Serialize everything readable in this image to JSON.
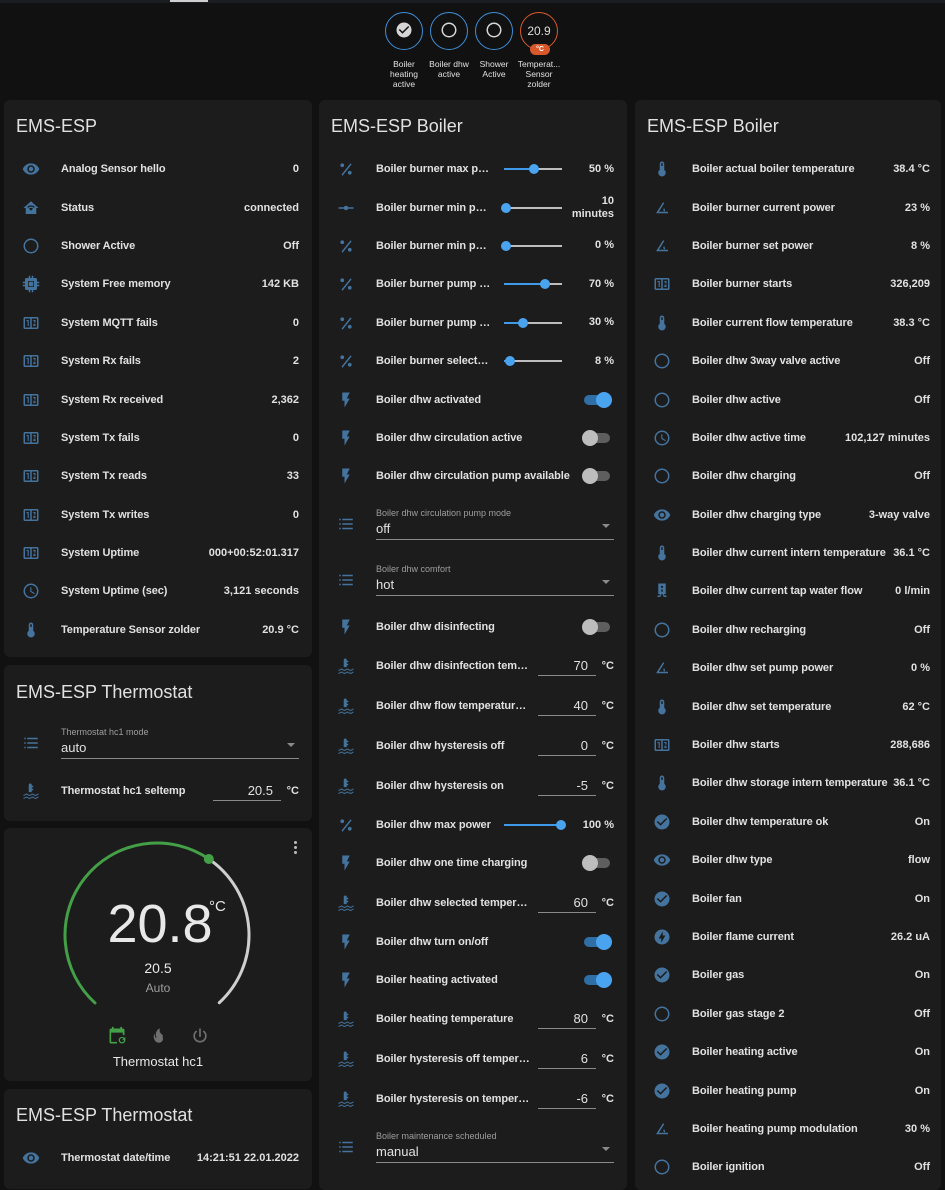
{
  "header": {
    "badges": [
      {
        "label": "Boiler heating active",
        "icon": "check-circle",
        "color": "#3f8ed8"
      },
      {
        "label": "Boiler dhw active",
        "icon": "circle",
        "color": "#3f8ed8"
      },
      {
        "label": "Shower Active",
        "icon": "circle",
        "color": "#3f8ed8"
      },
      {
        "label": "Temperat... Sensor zolder",
        "value": "20.9",
        "unit": "°C",
        "color": "#d9582b"
      }
    ]
  },
  "colors": {
    "icon": "#44739e",
    "accent": "#4aa3ef",
    "card": "#1c1c1c",
    "background": "#111111",
    "heat": "#43a047"
  },
  "ems_esp": {
    "title": "EMS-ESP",
    "rows": [
      {
        "icon": "eye",
        "name": "Analog Sensor hello",
        "value": "0"
      },
      {
        "icon": "home-wifi",
        "name": "Status",
        "value": "connected"
      },
      {
        "icon": "circle",
        "name": "Shower Active",
        "value": "Off"
      },
      {
        "icon": "chip",
        "name": "System Free memory",
        "value": "142 KB"
      },
      {
        "icon": "counter",
        "name": "System MQTT fails",
        "value": "0"
      },
      {
        "icon": "counter",
        "name": "System Rx fails",
        "value": "2"
      },
      {
        "icon": "counter",
        "name": "System Rx received",
        "value": "2,362"
      },
      {
        "icon": "counter",
        "name": "System Tx fails",
        "value": "0"
      },
      {
        "icon": "counter",
        "name": "System Tx reads",
        "value": "33"
      },
      {
        "icon": "counter",
        "name": "System Tx writes",
        "value": "0"
      },
      {
        "icon": "counter",
        "name": "System Uptime",
        "value": "000+00:52:01.317"
      },
      {
        "icon": "clock",
        "name": "System Uptime (sec)",
        "value": "3,121 seconds"
      },
      {
        "icon": "thermometer",
        "name": "Temperature Sensor zolder",
        "value": "20.9 °C"
      }
    ]
  },
  "thermostat_card": {
    "title": "EMS-ESP Thermostat",
    "rows": [
      {
        "type": "select",
        "icon": "list",
        "name": "Thermostat hc1 mode",
        "value": "auto"
      },
      {
        "type": "number",
        "icon": "water-thermometer",
        "name": "Thermostat hc1 seltemp",
        "value": "20.5",
        "unit": "°C"
      }
    ]
  },
  "climate": {
    "current_temperature": "20.8",
    "unit": "°C",
    "target_temperature": "20.5",
    "mode": "Auto",
    "name": "Thermostat hc1",
    "modes": [
      {
        "icon": "calendar-sync",
        "active": true
      },
      {
        "icon": "fire",
        "active": false
      },
      {
        "icon": "power",
        "active": false
      }
    ]
  },
  "thermostat_card2": {
    "title": "EMS-ESP Thermostat",
    "rows": [
      {
        "icon": "eye",
        "name": "Thermostat date/time",
        "value": "14:21:51 22.01.2022"
      }
    ]
  },
  "boiler_controls": {
    "title": "EMS-ESP Boiler",
    "rows": [
      {
        "type": "slider",
        "icon": "percent",
        "name": "Boiler burner max power",
        "value": "50 %",
        "level": 0.5
      },
      {
        "type": "slider",
        "icon": "ray-vertex",
        "name": "Boiler burner min period",
        "value": "10 minutes",
        "level": 0
      },
      {
        "type": "slider",
        "icon": "percent",
        "name": "Boiler burner min power",
        "value": "0 %",
        "level": 0
      },
      {
        "type": "slider",
        "icon": "percent",
        "name": "Boiler burner pump max power",
        "value": "70 %",
        "level": 0.7
      },
      {
        "type": "slider",
        "icon": "percent",
        "name": "Boiler burner pump min power",
        "value": "30 %",
        "level": 0.3
      },
      {
        "type": "slider",
        "icon": "percent",
        "name": "Boiler burner selected max power",
        "value": "8 %",
        "level": 0.08
      },
      {
        "type": "toggle",
        "icon": "flash",
        "name": "Boiler dhw activated",
        "on": true
      },
      {
        "type": "toggle",
        "icon": "flash",
        "name": "Boiler dhw circulation active",
        "on": false
      },
      {
        "type": "toggle",
        "icon": "flash",
        "name": "Boiler dhw circulation pump available",
        "on": false
      },
      {
        "type": "select",
        "icon": "list",
        "name": "Boiler dhw circulation pump mode",
        "value": "off"
      },
      {
        "type": "select",
        "icon": "list",
        "name": "Boiler dhw comfort",
        "value": "hot"
      },
      {
        "type": "toggle",
        "icon": "flash",
        "name": "Boiler dhw disinfecting",
        "on": false
      },
      {
        "type": "number",
        "icon": "water-thermometer",
        "name": "Boiler dhw disinfection temperature",
        "value": "70",
        "unit": "°C"
      },
      {
        "type": "number",
        "icon": "water-thermometer",
        "name": "Boiler dhw flow temperature offset",
        "value": "40",
        "unit": "°C"
      },
      {
        "type": "number",
        "icon": "water-thermometer",
        "name": "Boiler dhw hysteresis off",
        "value": "0",
        "unit": "°C"
      },
      {
        "type": "number",
        "icon": "water-thermometer",
        "name": "Boiler dhw hysteresis on",
        "value": "-5",
        "unit": "°C"
      },
      {
        "type": "slider",
        "icon": "percent",
        "name": "Boiler dhw max power",
        "value": "100 %",
        "level": 1
      },
      {
        "type": "toggle",
        "icon": "flash",
        "name": "Boiler dhw one time charging",
        "on": false
      },
      {
        "type": "number",
        "icon": "water-thermometer",
        "name": "Boiler dhw selected temperature",
        "value": "60",
        "unit": "°C"
      },
      {
        "type": "toggle",
        "icon": "flash",
        "name": "Boiler dhw turn on/off",
        "on": true
      },
      {
        "type": "toggle",
        "icon": "flash",
        "name": "Boiler heating activated",
        "on": true
      },
      {
        "type": "number",
        "icon": "water-thermometer",
        "name": "Boiler heating temperature",
        "value": "80",
        "unit": "°C"
      },
      {
        "type": "number",
        "icon": "water-thermometer",
        "name": "Boiler hysteresis off temperature",
        "value": "6",
        "unit": "°C"
      },
      {
        "type": "number",
        "icon": "water-thermometer",
        "name": "Boiler hysteresis on temperature",
        "value": "-6",
        "unit": "°C"
      },
      {
        "type": "select",
        "icon": "list",
        "name": "Boiler maintenance scheduled",
        "value": "manual"
      }
    ]
  },
  "boiler_sensors": {
    "title": "EMS-ESP Boiler",
    "rows": [
      {
        "icon": "thermometer",
        "name": "Boiler actual boiler temperature",
        "value": "38.4 °C"
      },
      {
        "icon": "angle-acute",
        "name": "Boiler burner current power",
        "value": "23 %"
      },
      {
        "icon": "angle-acute",
        "name": "Boiler burner set power",
        "value": "8 %"
      },
      {
        "icon": "counter",
        "name": "Boiler burner starts",
        "value": "326,209"
      },
      {
        "icon": "thermometer",
        "name": "Boiler current flow temperature",
        "value": "38.3 °C"
      },
      {
        "icon": "circle",
        "name": "Boiler dhw 3way valve active",
        "value": "Off"
      },
      {
        "icon": "circle",
        "name": "Boiler dhw active",
        "value": "Off"
      },
      {
        "icon": "clock",
        "name": "Boiler dhw active time",
        "value": "102,127 minutes"
      },
      {
        "icon": "circle",
        "name": "Boiler dhw charging",
        "value": "Off"
      },
      {
        "icon": "eye",
        "name": "Boiler dhw charging type",
        "value": "3-way valve"
      },
      {
        "icon": "thermometer",
        "name": "Boiler dhw current intern temperature",
        "value": "36.1 °C"
      },
      {
        "icon": "water-pump",
        "name": "Boiler dhw current tap water flow",
        "value": "0 l/min"
      },
      {
        "icon": "circle",
        "name": "Boiler dhw recharging",
        "value": "Off"
      },
      {
        "icon": "angle-acute",
        "name": "Boiler dhw set pump power",
        "value": "0 %"
      },
      {
        "icon": "thermometer",
        "name": "Boiler dhw set temperature",
        "value": "62 °C"
      },
      {
        "icon": "counter",
        "name": "Boiler dhw starts",
        "value": "288,686"
      },
      {
        "icon": "thermometer",
        "name": "Boiler dhw storage intern temperature",
        "value": "36.1 °C"
      },
      {
        "icon": "check-circle",
        "name": "Boiler dhw temperature ok",
        "value": "On"
      },
      {
        "icon": "eye",
        "name": "Boiler dhw type",
        "value": "flow"
      },
      {
        "icon": "check-circle",
        "name": "Boiler fan",
        "value": "On"
      },
      {
        "icon": "flash-circle",
        "name": "Boiler flame current",
        "value": "26.2 uA"
      },
      {
        "icon": "check-circle",
        "name": "Boiler gas",
        "value": "On"
      },
      {
        "icon": "circle",
        "name": "Boiler gas stage 2",
        "value": "Off"
      },
      {
        "icon": "check-circle",
        "name": "Boiler heating active",
        "value": "On"
      },
      {
        "icon": "check-circle",
        "name": "Boiler heating pump",
        "value": "On"
      },
      {
        "icon": "angle-acute",
        "name": "Boiler heating pump modulation",
        "value": "30 %"
      },
      {
        "icon": "circle",
        "name": "Boiler ignition",
        "value": "Off"
      }
    ]
  }
}
